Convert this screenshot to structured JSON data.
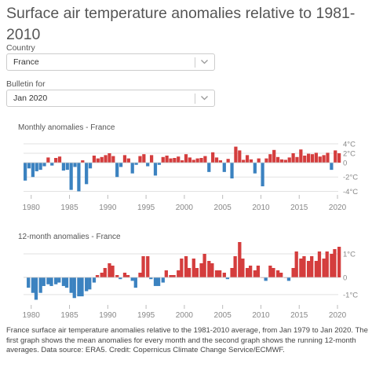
{
  "page": {
    "title": "Surface air temperature anomalies relative to 1981-2010"
  },
  "filters": {
    "country_label": "Country",
    "country_value": "France",
    "bulletin_label": "Bulletin for",
    "bulletin_value": "Jan 2020"
  },
  "caption": "France surface air temperature anomalies relative to the 1981-2010 average, from Jan 1979 to Jan 2020. The first graph shows the mean anomalies for every month and the second graph shows the running 12-month averages. Data source: ERA5. Credit: Copernicus Climate Change Service/ECMWF.",
  "colors": {
    "positive": "#d43d3d",
    "negative": "#3b82c0",
    "grid": "#e2e2e2",
    "axis_text": "#888888",
    "title_text": "#555555"
  },
  "icons": [
    "chevron-down-icon"
  ],
  "chart_data": [
    {
      "type": "bar",
      "title": "Monthly anomalies - France",
      "x_range": [
        1979.0,
        2020.1
      ],
      "ylim": [
        -4.5,
        4.5
      ],
      "yticks": [
        -4,
        -2,
        0,
        2,
        4
      ],
      "ytick_labels": [
        "-4°C",
        "-2°C",
        "0",
        "2°C",
        "4°C"
      ],
      "xticks": [
        1980,
        1985,
        1990,
        1995,
        2000,
        2005,
        2010,
        2015,
        2020
      ],
      "grid": true,
      "x": [
        "1979-01",
        "1979-07",
        "1980-01",
        "1980-07",
        "1981-01",
        "1981-07",
        "1982-01",
        "1982-07",
        "1983-01",
        "1983-07",
        "1984-01",
        "1984-07",
        "1985-01",
        "1985-07",
        "1986-01",
        "1986-07",
        "1987-01",
        "1987-07",
        "1988-01",
        "1988-07",
        "1989-01",
        "1989-07",
        "1990-01",
        "1990-07",
        "1991-01",
        "1991-07",
        "1992-01",
        "1992-07",
        "1993-01",
        "1993-07",
        "1994-01",
        "1994-07",
        "1995-01",
        "1995-07",
        "1996-01",
        "1996-07",
        "1997-01",
        "1997-07",
        "1998-01",
        "1998-07",
        "1999-01",
        "1999-07",
        "2000-01",
        "2000-07",
        "2001-01",
        "2001-07",
        "2002-01",
        "2002-07",
        "2003-01",
        "2003-07",
        "2004-01",
        "2004-07",
        "2005-01",
        "2005-07",
        "2006-01",
        "2006-07",
        "2007-01",
        "2007-07",
        "2008-01",
        "2008-07",
        "2009-01",
        "2009-07",
        "2010-01",
        "2010-07",
        "2011-01",
        "2011-07",
        "2012-01",
        "2012-07",
        "2013-01",
        "2013-07",
        "2014-01",
        "2014-07",
        "2015-01",
        "2015-07",
        "2016-01",
        "2016-07",
        "2017-01",
        "2017-07",
        "2018-01",
        "2018-07",
        "2019-01",
        "2019-07",
        "2020-01"
      ],
      "values": [
        -2.5,
        -0.8,
        -2.0,
        -1.2,
        -1.0,
        -0.5,
        1.1,
        -0.4,
        1.0,
        1.3,
        -1.1,
        -1.0,
        -3.8,
        -0.6,
        -4.0,
        0.5,
        -3.0,
        -0.8,
        1.5,
        0.9,
        1.2,
        1.6,
        2.0,
        1.4,
        -2.0,
        -0.6,
        1.6,
        0.9,
        -1.5,
        -0.3,
        1.4,
        1.8,
        -0.5,
        1.6,
        -1.8,
        -0.3,
        1.2,
        1.5,
        0.9,
        1.0,
        1.3,
        0.5,
        1.8,
        1.1,
        0.6,
        0.9,
        1.0,
        1.4,
        -1.3,
        2.2,
        1.1,
        0.5,
        -1.3,
        0.8,
        -2.2,
        3.4,
        2.6,
        0.6,
        1.6,
        0.7,
        -1.5,
        0.9,
        -3.3,
        0.9,
        1.8,
        2.7,
        1.2,
        0.7,
        0.6,
        1.1,
        2.0,
        1.2,
        2.8,
        1.5,
        1.9,
        1.8,
        2.1,
        1.3,
        1.6,
        2.1,
        -1.0,
        2.6,
        2.0
      ]
    },
    {
      "type": "bar",
      "title": "12-month anomalies - France",
      "x_range": [
        1979.0,
        2020.1
      ],
      "ylim": [
        -1.6,
        1.6
      ],
      "yticks": [
        -1,
        0,
        1
      ],
      "ytick_labels": [
        "-1°C",
        "0",
        "1°C"
      ],
      "xticks": [
        1980,
        1985,
        1990,
        1995,
        2000,
        2005,
        2010,
        2015,
        2020
      ],
      "grid": true,
      "x": [
        "1979-06",
        "1980-01",
        "1980-06",
        "1981-01",
        "1981-06",
        "1982-01",
        "1982-06",
        "1983-01",
        "1983-06",
        "1984-01",
        "1984-06",
        "1985-01",
        "1985-06",
        "1986-01",
        "1986-06",
        "1987-01",
        "1987-06",
        "1988-01",
        "1988-06",
        "1989-01",
        "1989-06",
        "1990-01",
        "1990-06",
        "1991-01",
        "1991-06",
        "1992-01",
        "1992-06",
        "1993-01",
        "1993-06",
        "1994-01",
        "1994-06",
        "1995-01",
        "1995-06",
        "1996-01",
        "1996-06",
        "1997-01",
        "1997-06",
        "1998-01",
        "1998-06",
        "1999-01",
        "1999-06",
        "2000-01",
        "2000-06",
        "2001-01",
        "2001-06",
        "2002-01",
        "2002-06",
        "2003-01",
        "2003-06",
        "2004-01",
        "2004-06",
        "2005-01",
        "2005-06",
        "2006-01",
        "2006-06",
        "2007-01",
        "2007-06",
        "2008-01",
        "2008-06",
        "2009-01",
        "2009-06",
        "2010-01",
        "2010-06",
        "2011-01",
        "2011-06",
        "2012-01",
        "2012-06",
        "2013-01",
        "2013-06",
        "2014-01",
        "2014-06",
        "2015-01",
        "2015-06",
        "2016-01",
        "2016-06",
        "2017-01",
        "2017-06",
        "2018-01",
        "2018-06",
        "2019-01",
        "2019-06",
        "2020-01"
      ],
      "values": [
        -0.6,
        -0.9,
        -1.3,
        -0.9,
        -0.5,
        -0.4,
        -0.5,
        -0.4,
        -0.3,
        -0.5,
        -0.6,
        -0.9,
        -1.2,
        -1.1,
        -1.1,
        -0.8,
        -0.7,
        -0.3,
        0.1,
        0.2,
        0.4,
        0.6,
        0.5,
        0.1,
        -0.1,
        0.2,
        0.1,
        -0.2,
        -0.6,
        0.2,
        0.9,
        0.9,
        -0.1,
        -0.5,
        -0.5,
        -0.3,
        0.3,
        0.1,
        0.1,
        0.3,
        0.8,
        0.9,
        0.4,
        0.8,
        0.4,
        0.6,
        1.0,
        0.7,
        0.6,
        0.3,
        0.3,
        0.2,
        -0.1,
        0.4,
        0.9,
        1.5,
        0.8,
        0.4,
        0.5,
        0.3,
        0.5,
        0.0,
        -0.2,
        0.5,
        0.4,
        0.3,
        0.2,
        0.0,
        -0.2,
        0.4,
        1.1,
        0.8,
        0.9,
        0.7,
        0.9,
        0.7,
        1.1,
        0.8,
        1.1,
        1.0,
        1.2,
        1.3
      ]
    }
  ]
}
